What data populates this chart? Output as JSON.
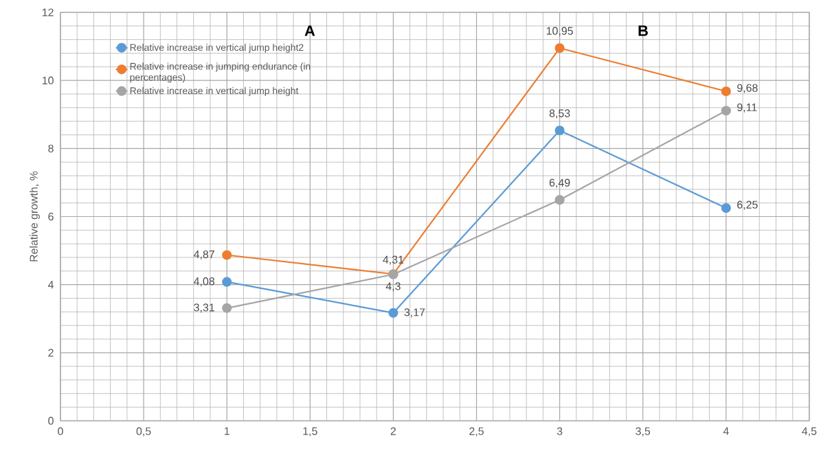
{
  "chart_data": {
    "type": "line",
    "ylabel": "Relative growth, %",
    "x": [
      1,
      2,
      3,
      4
    ],
    "xlim": [
      0,
      4.5
    ],
    "ylim": [
      0,
      12
    ],
    "xticks": [
      0,
      {
        "value": 0.5,
        "label": "0,5"
      },
      1,
      {
        "value": 1.5,
        "label": "1,5"
      },
      2,
      {
        "value": 2.5,
        "label": "2,5"
      },
      3,
      {
        "value": 3.5,
        "label": "3,5"
      },
      4,
      {
        "value": 4.5,
        "label": "4,5"
      }
    ],
    "yticks": [
      0,
      2,
      4,
      6,
      8,
      10,
      12
    ],
    "grid": true,
    "legend": "top left",
    "marker": "circle",
    "line_style": "solid",
    "annotations": [
      "A",
      "B"
    ],
    "series": [
      {
        "name": "Relative increase in vertical jump height2",
        "color": "#5b9bd5",
        "values": [
          4.08,
          3.17,
          8.53,
          6.25
        ],
        "value_labels": [
          "4,08",
          "3,17",
          "8,53",
          "6,25"
        ]
      },
      {
        "name": "Relative increase in jumping endurance (in percentages)",
        "color": "#ed7d31",
        "values": [
          4.87,
          4.31,
          10.95,
          9.68
        ],
        "value_labels": [
          "4,87",
          "4,31",
          "10,95",
          "9,68"
        ]
      },
      {
        "name": "Relative increase in vertical jump height",
        "color": "#a5a5a5",
        "values": [
          3.31,
          4.3,
          6.49,
          9.11
        ],
        "value_labels": [
          "3,31",
          "4,3",
          "6,49",
          "9,11"
        ]
      }
    ]
  }
}
